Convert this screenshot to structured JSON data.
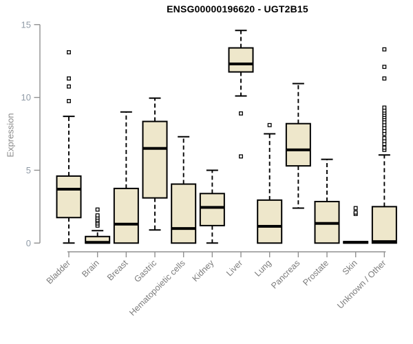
{
  "chart_data": {
    "type": "boxplot",
    "title": "ENSG00000196620 - UGT2B15",
    "ylabel": "Expression",
    "xlabel": "",
    "ylim": [
      0,
      15
    ],
    "yticks": [
      0,
      5,
      10,
      15
    ],
    "grid": false,
    "legend": false,
    "categories": [
      "Bladder",
      "Brain",
      "Breast",
      "Gastric",
      "Hematopoietic cells",
      "Kidney",
      "Liver",
      "Lung",
      "Pancreas",
      "Prostate",
      "Skin",
      "Unknown / Other"
    ],
    "series": [
      {
        "name": "Bladder",
        "low": 0,
        "q1": 1.75,
        "median": 3.7,
        "q3": 4.6,
        "high": 8.7,
        "outliers": [
          9.75,
          10.75,
          11.3,
          13.1
        ]
      },
      {
        "name": "Brain",
        "low": 0,
        "q1": 0,
        "median": 0.05,
        "q3": 0.45,
        "high": 0.85,
        "outliers": [
          1.2,
          1.35,
          1.5,
          1.6,
          1.75,
          1.9,
          2.3
        ]
      },
      {
        "name": "Breast",
        "low": 0,
        "q1": 0,
        "median": 1.3,
        "q3": 3.75,
        "high": 9.0,
        "outliers": []
      },
      {
        "name": "Gastric",
        "low": 0.9,
        "q1": 3.1,
        "median": 6.5,
        "q3": 8.35,
        "high": 9.95,
        "outliers": []
      },
      {
        "name": "Hematopoietic cells",
        "low": 0,
        "q1": 0,
        "median": 1.0,
        "q3": 4.05,
        "high": 7.3,
        "outliers": []
      },
      {
        "name": "Kidney",
        "low": 0,
        "q1": 1.2,
        "median": 2.45,
        "q3": 3.4,
        "high": 5.0,
        "outliers": []
      },
      {
        "name": "Liver",
        "low": 10.1,
        "q1": 11.75,
        "median": 12.3,
        "q3": 13.4,
        "high": 14.6,
        "outliers": [
          5.95,
          8.9
        ]
      },
      {
        "name": "Lung",
        "low": 0,
        "q1": 0,
        "median": 1.15,
        "q3": 2.95,
        "high": 7.5,
        "outliers": [
          8.1
        ]
      },
      {
        "name": "Pancreas",
        "low": 2.4,
        "q1": 5.3,
        "median": 6.4,
        "q3": 8.2,
        "high": 10.95,
        "outliers": []
      },
      {
        "name": "Prostate",
        "low": 0,
        "q1": 0,
        "median": 1.35,
        "q3": 2.85,
        "high": 5.75,
        "outliers": []
      },
      {
        "name": "Skin",
        "low": 0,
        "q1": 0,
        "median": 0.05,
        "q3": 0.1,
        "high": 0.1,
        "outliers": [
          2.0,
          2.1,
          2.4
        ]
      },
      {
        "name": "Unknown / Other",
        "low": 0,
        "q1": 0,
        "median": 0.1,
        "q3": 2.5,
        "high": 6.05,
        "outliers": [
          6.4,
          6.55,
          6.8,
          7.0,
          7.2,
          7.5,
          7.7,
          7.9,
          8.1,
          8.3,
          8.5,
          8.65,
          8.8,
          8.95,
          9.1,
          9.3,
          11.3,
          12.1,
          13.3
        ]
      }
    ]
  },
  "colors": {
    "box_fill": "#eee7cb",
    "box_border": "#000000",
    "median": "#000000",
    "whisker": "#000000",
    "outlier_stroke": "#000000",
    "axis": "#909090",
    "y_tick_label": "#8f9aa6",
    "x_tick_label": "#7c7c7c",
    "title": "#000000",
    "background": "#ffffff"
  }
}
